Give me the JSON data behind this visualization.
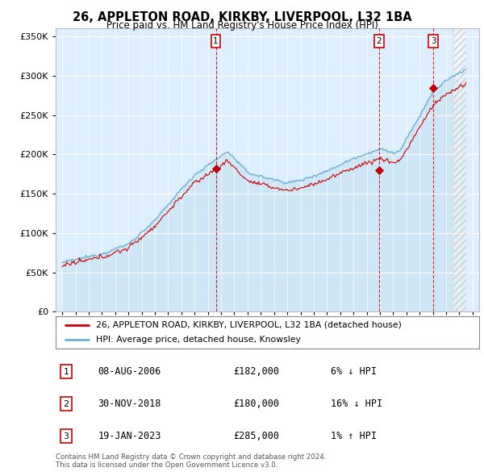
{
  "title": "26, APPLETON ROAD, KIRKBY, LIVERPOOL, L32 1BA",
  "subtitle": "Price paid vs. HM Land Registry's House Price Index (HPI)",
  "legend_property": "26, APPLETON ROAD, KIRKBY, LIVERPOOL, L32 1BA (detached house)",
  "legend_hpi": "HPI: Average price, detached house, Knowsley",
  "footer1": "Contains HM Land Registry data © Crown copyright and database right 2024.",
  "footer2": "This data is licensed under the Open Government Licence v3.0.",
  "transactions": [
    {
      "num": 1,
      "date": "08-AUG-2006",
      "price": 182000,
      "pct": "6%",
      "dir": "↓",
      "x_year": 2006.6
    },
    {
      "num": 2,
      "date": "30-NOV-2018",
      "price": 180000,
      "pct": "16%",
      "dir": "↓",
      "x_year": 2018.92
    },
    {
      "num": 3,
      "date": "19-JAN-2023",
      "price": 285000,
      "pct": "1%",
      "dir": "↑",
      "x_year": 2023.05
    }
  ],
  "hpi_color": "#6baed6",
  "property_color": "#cc0000",
  "background_plot": "#ddeeff",
  "background_fig": "#ffffff",
  "ylim": [
    0,
    360000
  ],
  "yticks": [
    0,
    50000,
    100000,
    150000,
    200000,
    250000,
    300000,
    350000
  ],
  "xlim_start": 1994.5,
  "xlim_end": 2026.5,
  "hatch_start": 2024.5
}
